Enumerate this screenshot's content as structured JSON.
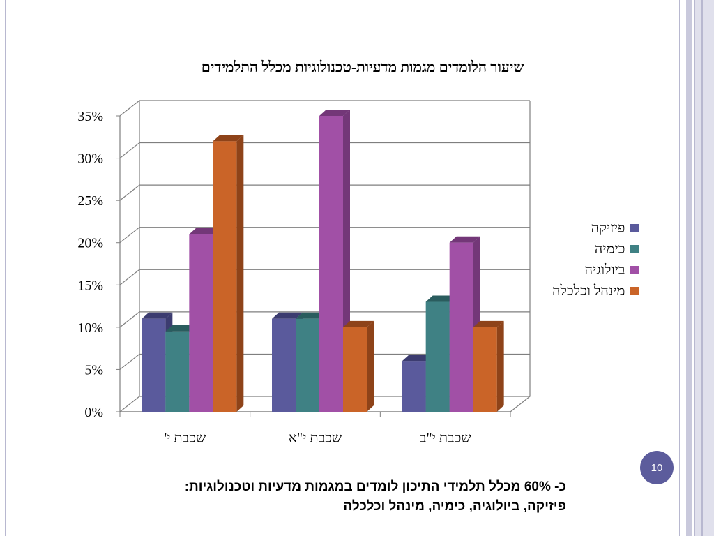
{
  "slide": {
    "page_number": "10",
    "footnote_line1": "כ- 60% מכלל תלמידי התיכון לומדים במגמות מדעיות וטכנולוגיות:",
    "footnote_line2": "פיזיקה, ביולוגיה, כימיה, מינהל וכלכלה"
  },
  "chart_data": {
    "type": "bar",
    "title": "שיעור הלומדים מגמות מדעיות-טכנולוגיות מכלל התלמידים",
    "categories": [
      "שכבת י'",
      "שכבת י\"א",
      "שכבת י\"ב"
    ],
    "ylim": [
      0,
      35
    ],
    "yticks": [
      "0%",
      "5%",
      "10%",
      "15%",
      "20%",
      "25%",
      "30%",
      "35%"
    ],
    "grid": true,
    "legend_position": "right",
    "series": [
      {
        "name": "פיזיקה",
        "values": [
          11,
          11,
          6
        ],
        "color": "#5a5a9c",
        "side": "#3c3c70"
      },
      {
        "name": "כימיה",
        "values": [
          9.5,
          11,
          13
        ],
        "color": "#3f8184",
        "side": "#2a5c5e"
      },
      {
        "name": "ביולוגיה",
        "values": [
          21,
          35,
          20
        ],
        "color": "#a150a6",
        "side": "#733778"
      },
      {
        "name": "מינהל וכלכלה",
        "values": [
          32,
          10,
          10
        ],
        "color": "#ca6428",
        "side": "#8e4319"
      }
    ]
  }
}
